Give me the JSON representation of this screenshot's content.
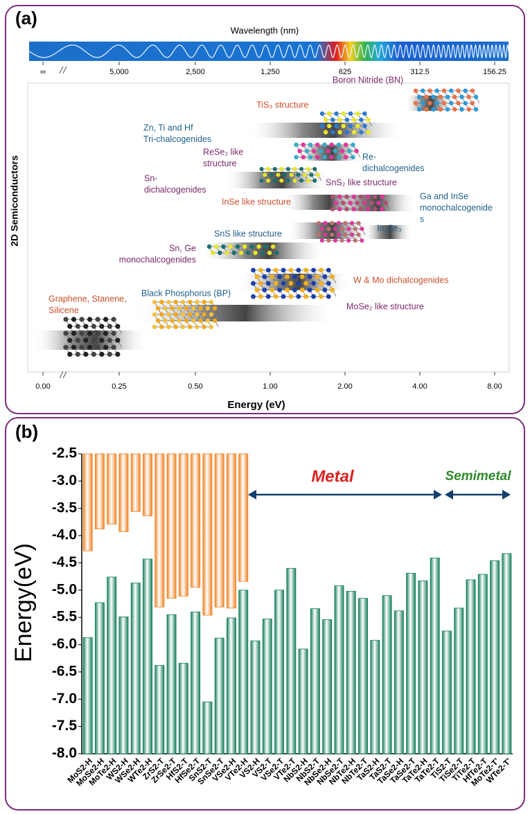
{
  "panel_labels": [
    "(a)",
    "(b)"
  ],
  "diagram": {
    "wavelength_title": "Wavelength (nm)",
    "wavelength_ticks": [
      "∞",
      "5,000",
      "2,500",
      "1,250",
      "625",
      "312.5",
      "156.25"
    ],
    "energy_ticks": [
      "0.00",
      "0.25",
      "0.50",
      "1.00",
      "2.00",
      "4.00",
      "8.00"
    ],
    "xlabel": "Energy (eV)",
    "ylabel": "2D Semiconductors",
    "labels": [
      [
        "TiS₃ structure"
      ],
      [
        "Boron Nitride (BN)"
      ],
      [
        "Zn, Ti and Hf",
        "Tri-chalcogenides"
      ],
      [
        "ReSe₂ like",
        "structure"
      ],
      [
        "Re-",
        "dichalcogenides"
      ],
      [
        "Sn-",
        "dichalcogenides"
      ],
      [
        "SnS₂ like structure"
      ],
      [
        "InSe like structure"
      ],
      [
        "Ga and InSe",
        "monochalcogenide",
        "s"
      ],
      [
        "SnS like structure"
      ],
      [
        "In₂Se₃"
      ],
      [
        "Sn, Ge",
        "monochalcogenides"
      ],
      [
        "W & Mo dichalcogenides"
      ],
      [
        "Graphene, Stanene,",
        "Silicene"
      ],
      [
        "Black Phosphorus (BP)"
      ],
      [
        "MoSe₂ like structure"
      ]
    ]
  },
  "chart_data": {
    "type": "bar",
    "ylabel": "Energy(eV)",
    "categories": [
      "MoS2-H",
      "MoSe2-H",
      "MoTe2-H",
      "WS2-H",
      "WSe2-H",
      "WTe2-H",
      "ZrS2-T",
      "ZrSe2-T",
      "HfS2-T",
      "HfSe2-T",
      "SnS2-T",
      "SnSe2-T",
      "VSe2-H",
      "VTe2-H",
      "VS2-H",
      "VS2-T",
      "VSe2-T",
      "VTe2-T",
      "NbS2-H",
      "NbS2-T",
      "NbSe2-H",
      "NbSe2-T",
      "NbTe2-H",
      "NbTe2-T",
      "TaS2-H",
      "TaS2-T",
      "TaSe2-H",
      "TaSe2-T",
      "TaTe2-H",
      "TaTe2-T",
      "TiS2-T",
      "TiSe2-T",
      "TiTe2-T",
      "HfTe2-T",
      "MoTe2-T'",
      "WTe2-T'"
    ],
    "series": [
      {
        "color": "#f08426",
        "anchor": "top",
        "values": [
          -4.28,
          -3.88,
          -3.79,
          -3.93,
          -3.56,
          -3.64,
          -5.31,
          -5.15,
          -5.11,
          -4.95,
          -5.46,
          -5.31,
          -5.33,
          -4.84,
          null,
          null,
          null,
          null,
          null,
          null,
          null,
          null,
          null,
          null,
          null,
          null,
          null,
          null,
          null,
          null,
          null,
          null,
          null,
          null,
          null,
          null
        ]
      },
      {
        "color": "#17805a",
        "anchor": "bottom",
        "values": [
          -5.87,
          -5.23,
          -4.76,
          -5.49,
          -4.87,
          -4.43,
          -6.38,
          -5.45,
          -6.34,
          -5.4,
          -7.05,
          -5.88,
          -5.51,
          -5.0,
          -5.93,
          -5.53,
          -5.0,
          -4.6,
          -6.08,
          -5.34,
          -5.54,
          -4.92,
          -5.02,
          -5.15,
          -5.92,
          -5.1,
          -5.38,
          -4.69,
          -4.83,
          -4.41,
          -5.75,
          -5.33,
          -4.81,
          -4.71,
          -4.46,
          -4.33
        ]
      }
    ],
    "ylim": [
      -8,
      -2.5
    ],
    "yticks": [
      {
        "value": -8,
        "label": "-8.0"
      },
      -7.5,
      {
        "value": -7,
        "label": "-7.0"
      },
      -6.5,
      {
        "value": -6,
        "label": "-6.0"
      },
      -5.5,
      {
        "value": -5,
        "label": "-5.0"
      },
      -4.5,
      {
        "value": -4,
        "label": "-4.0"
      },
      -3.5,
      {
        "value": -3,
        "label": "-3.0"
      },
      -2.5
    ],
    "grid": false,
    "annotations": [
      {
        "text": "Metal",
        "color": "#d8231f"
      },
      {
        "text": "Semimetal",
        "color": "#2d8a2d"
      }
    ]
  }
}
